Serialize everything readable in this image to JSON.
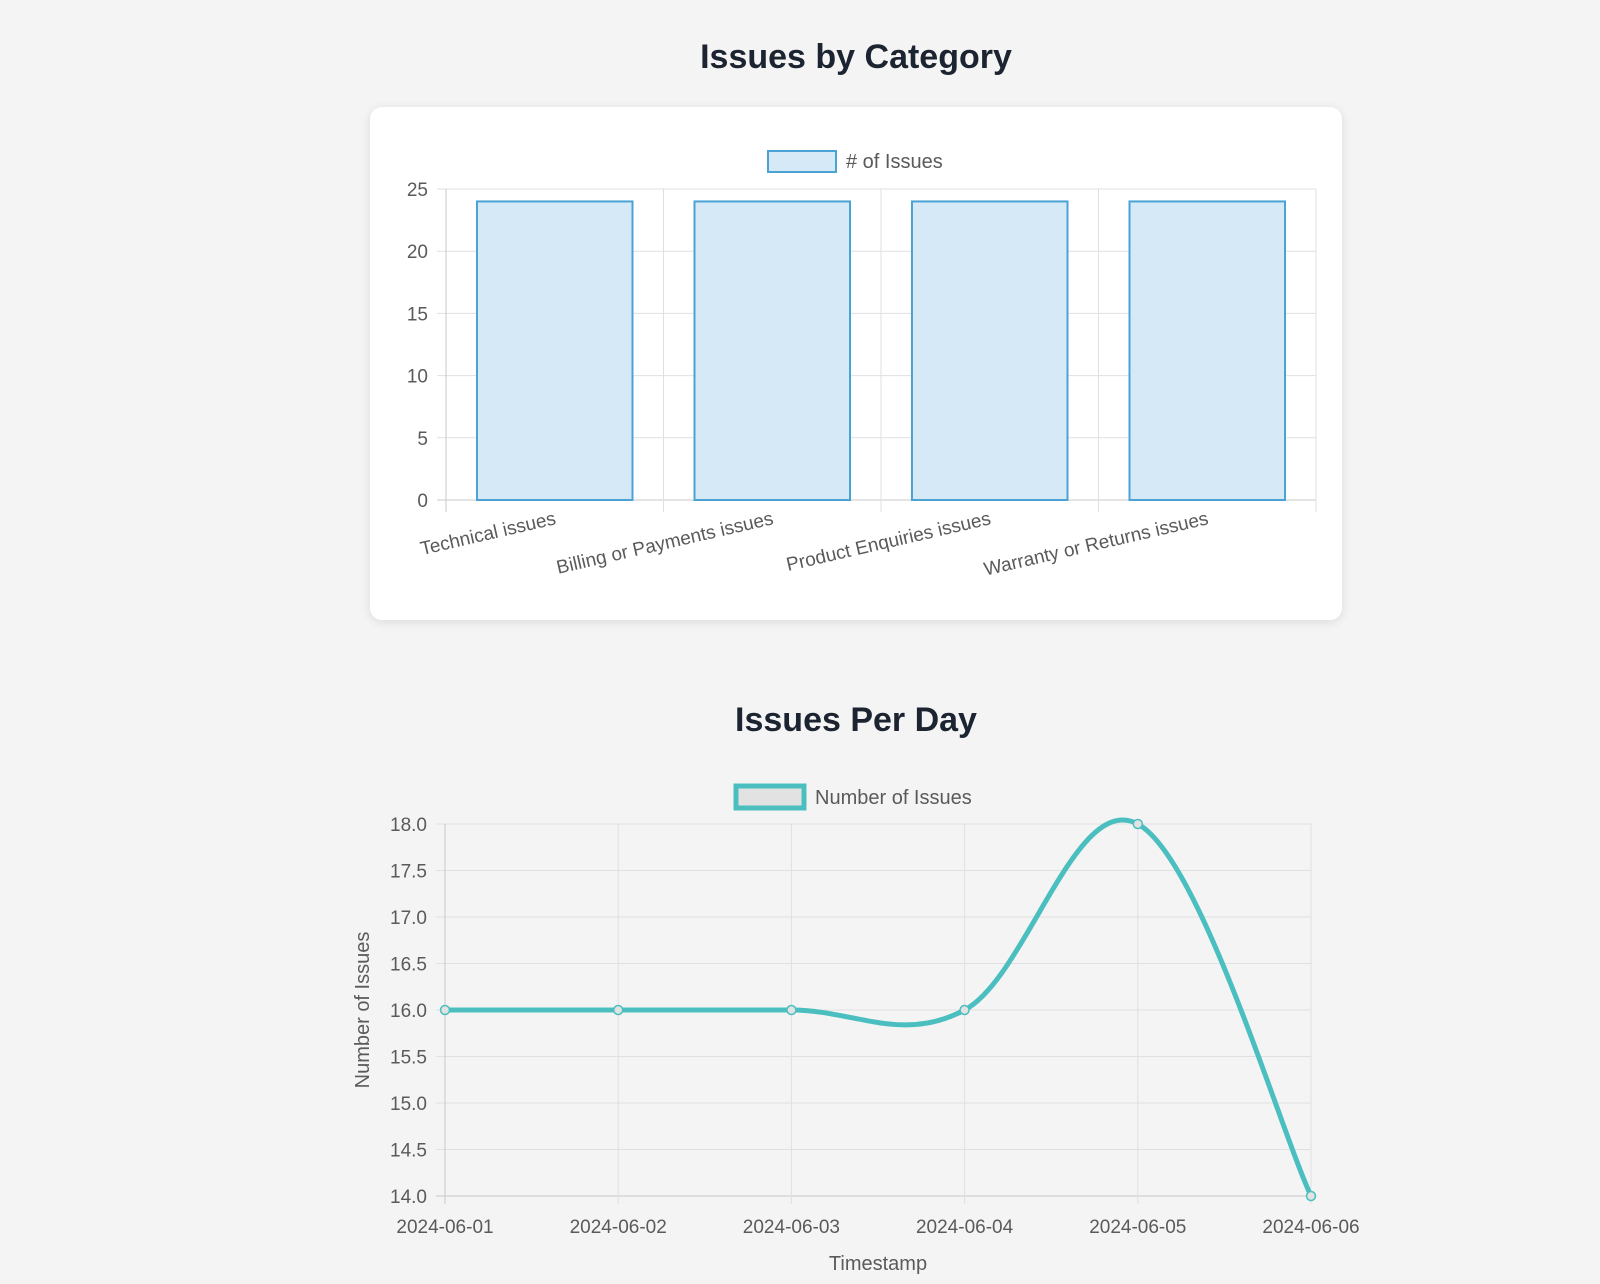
{
  "page": {
    "category_title": "Issues by Category",
    "perday_title": "Issues Per Day"
  },
  "colors": {
    "bar_fill": "#d6e9f7",
    "bar_stroke": "#4aa3d4",
    "line": "#4bbfbf",
    "point_fill": "#e2e2e2",
    "grid": "#e0e0e0",
    "axis": "#c8c8c8",
    "text": "#5a5a5a",
    "title": "#1b2430"
  },
  "chart_data": [
    {
      "type": "bar",
      "title": "Issues by Category",
      "categories": [
        "Technical issues",
        "Billing or Payments issues",
        "Product Enquiries issues",
        "Warranty or Returns issues"
      ],
      "series": [
        {
          "name": "# of Issues",
          "values": [
            24,
            24,
            24,
            24
          ]
        }
      ],
      "ylim": [
        0,
        25
      ],
      "yticks": [
        0,
        5,
        10,
        15,
        20,
        25
      ],
      "xlabel": "",
      "ylabel": "",
      "grid": true,
      "legend": "top"
    },
    {
      "type": "line",
      "title": "Issues Per Day",
      "x": [
        "2024-06-01",
        "2024-06-02",
        "2024-06-03",
        "2024-06-04",
        "2024-06-05",
        "2024-06-06"
      ],
      "series": [
        {
          "name": "Number of Issues",
          "values": [
            16,
            16,
            16,
            16,
            18,
            14
          ]
        }
      ],
      "ylim": [
        14,
        18
      ],
      "yticks": [
        "14.0",
        "14.5",
        "15.0",
        "15.5",
        "16.0",
        "16.5",
        "17.0",
        "17.5",
        "18.0"
      ],
      "xlabel": "Timestamp",
      "ylabel": "Number of Issues",
      "grid": true,
      "legend": "top"
    }
  ]
}
